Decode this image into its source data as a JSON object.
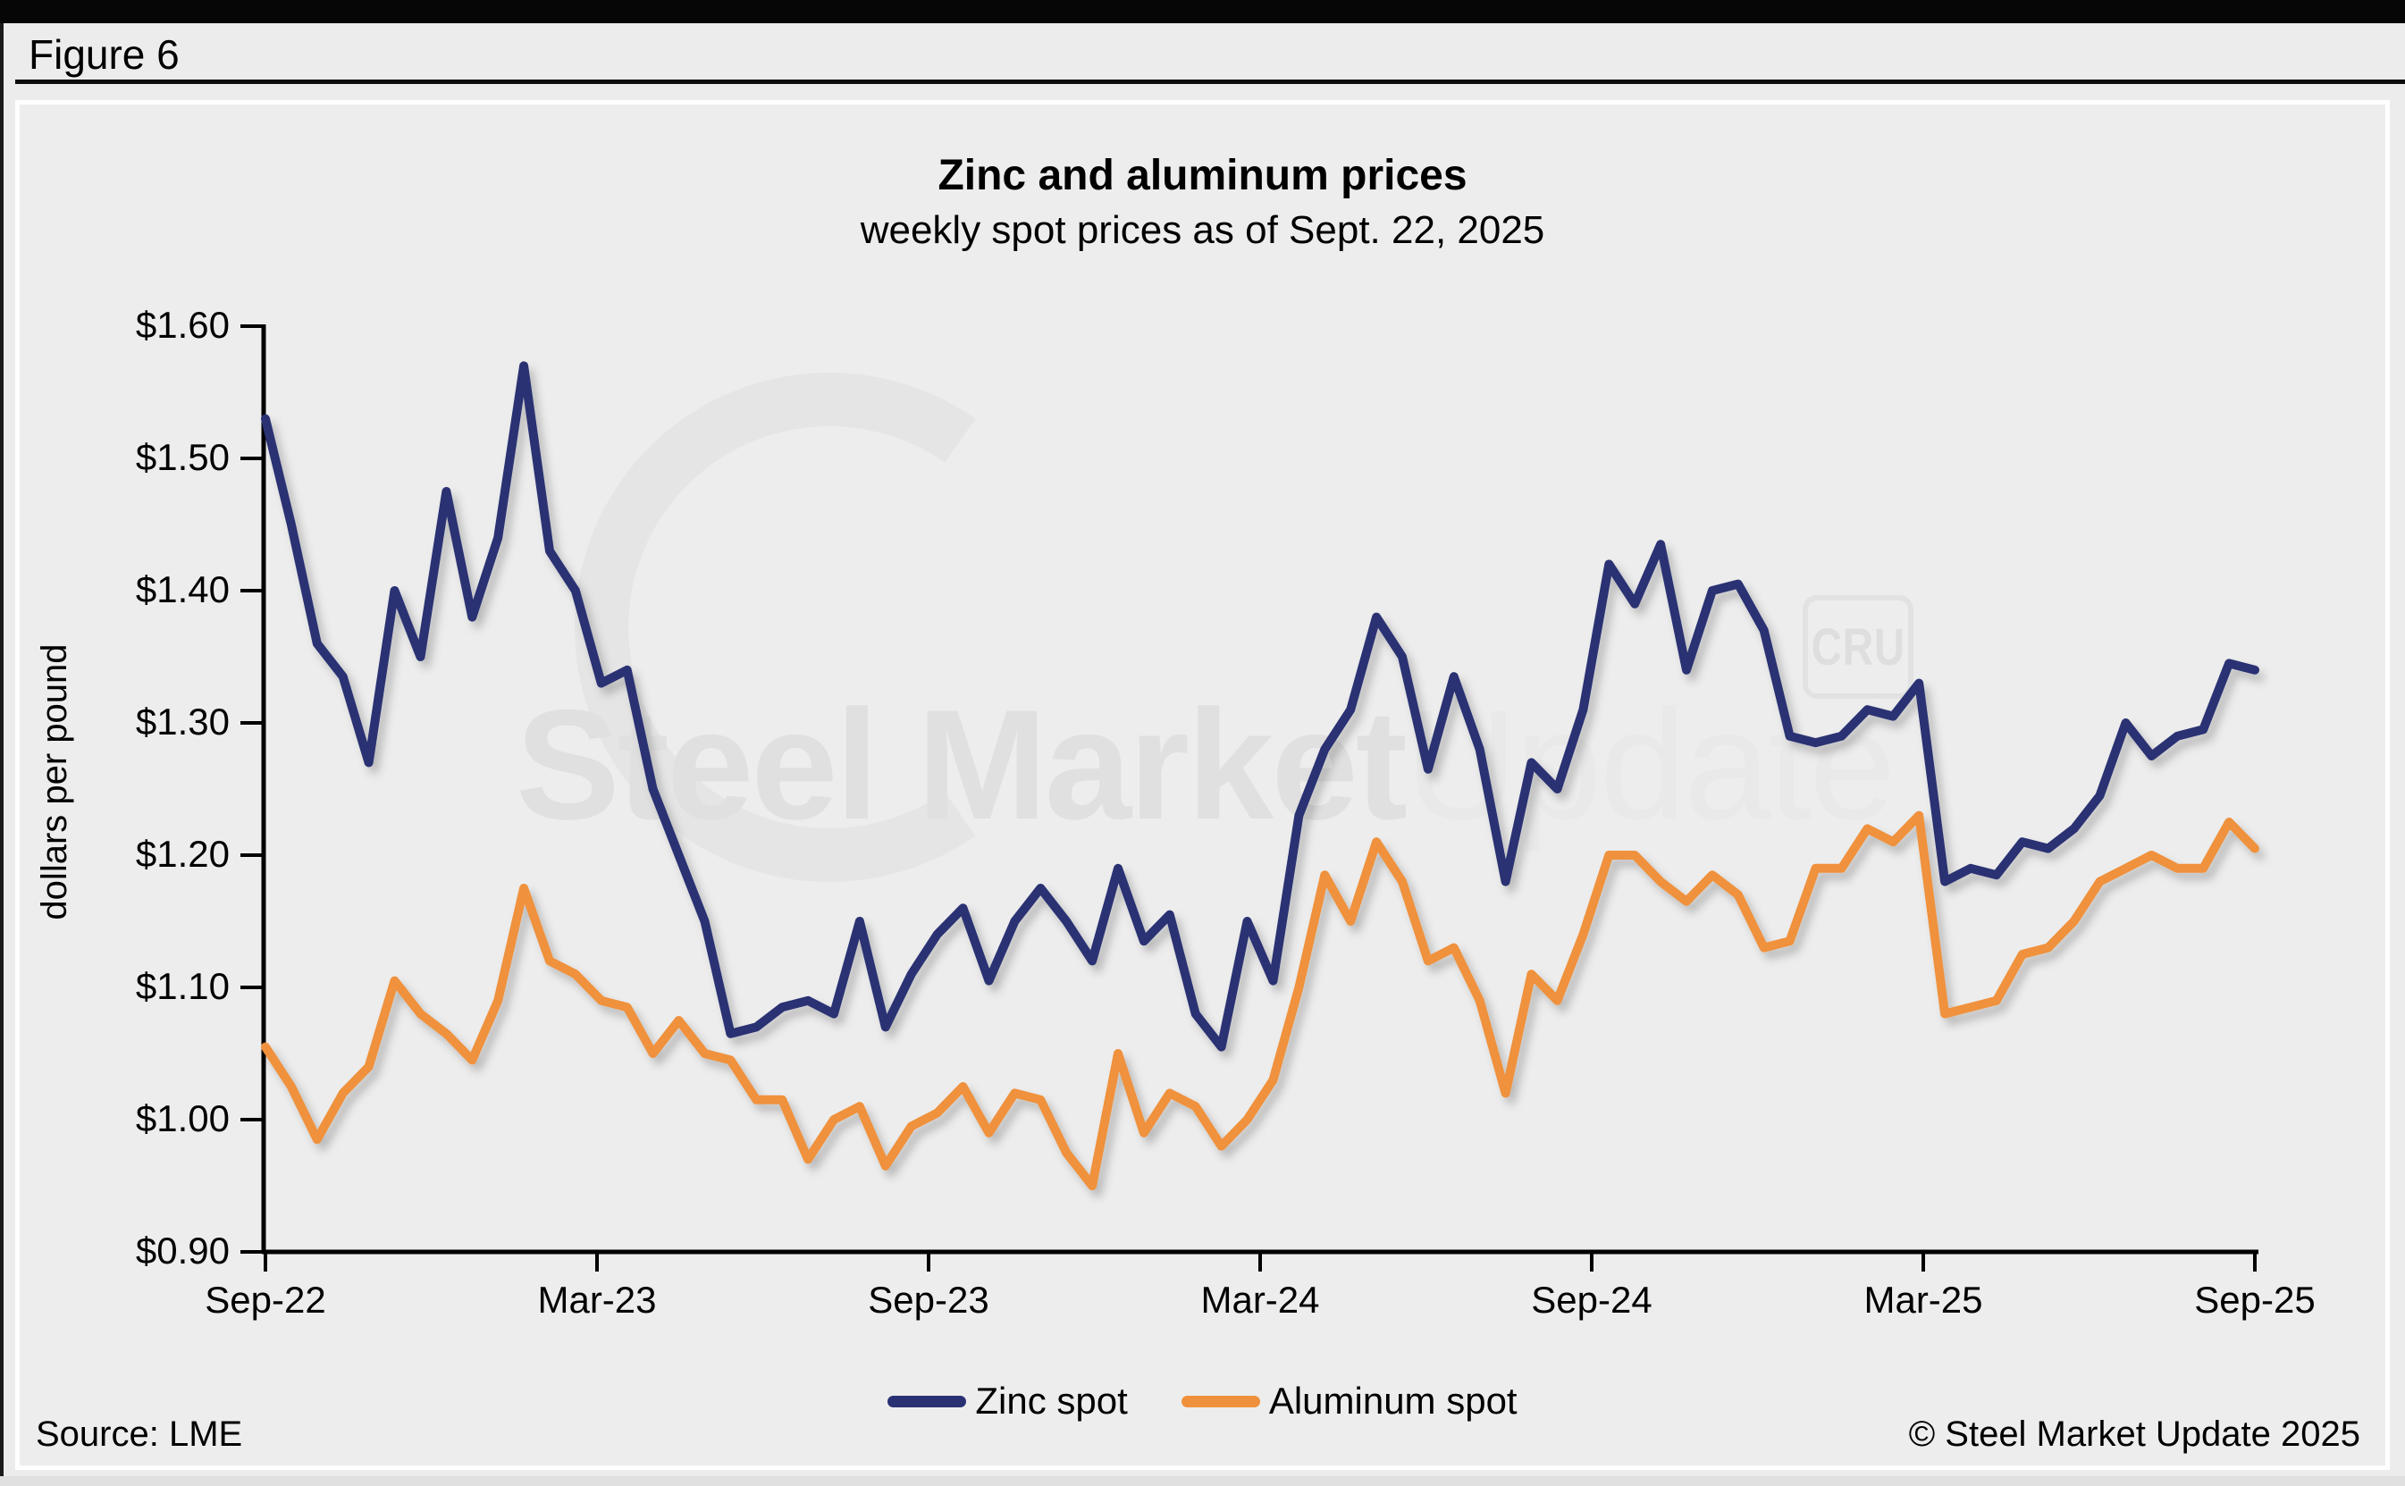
{
  "header": {
    "figure_label": "Figure 6"
  },
  "watermark": {
    "text_bold": "Steel Market",
    "text_light": "Update",
    "cru": "CRU"
  },
  "footer": {
    "source": "Source: LME",
    "copyright": "© Steel Market Update 2025"
  },
  "colors": {
    "zinc": "#293173",
    "aluminum": "#ef913c",
    "axis": "#000000",
    "panel_bg": "#ededed",
    "page_bg": "#ececec"
  },
  "chart_data": {
    "type": "line",
    "title": "Zinc and aluminum prices",
    "subtitle": "weekly spot prices as of Sept. 22, 2025",
    "ylabel": "dollars per pound",
    "xlabel": "",
    "grid": false,
    "legend_position": "bottom",
    "y_min": 0.9,
    "y_max": 1.6,
    "y_ticks": [
      "$1.60",
      "$1.50",
      "$1.40",
      "$1.30",
      "$1.20",
      "$1.10",
      "$1.00",
      "$0.90"
    ],
    "x_ticks": [
      "Sep-22",
      "Mar-23",
      "Sep-23",
      "Mar-24",
      "Sep-24",
      "Mar-25",
      "Sep-25"
    ],
    "x_unit": "biweekly samples from Sep-2022 to Sep-22-2025",
    "series": [
      {
        "name": "Zinc spot",
        "color": "#293173",
        "values": [
          1.53,
          1.45,
          1.36,
          1.335,
          1.27,
          1.4,
          1.35,
          1.475,
          1.38,
          1.44,
          1.57,
          1.43,
          1.4,
          1.33,
          1.34,
          1.25,
          1.2,
          1.15,
          1.065,
          1.07,
          1.085,
          1.09,
          1.08,
          1.15,
          1.07,
          1.11,
          1.14,
          1.16,
          1.105,
          1.15,
          1.175,
          1.15,
          1.12,
          1.19,
          1.135,
          1.155,
          1.08,
          1.055,
          1.15,
          1.105,
          1.23,
          1.28,
          1.31,
          1.38,
          1.35,
          1.265,
          1.335,
          1.28,
          1.18,
          1.27,
          1.25,
          1.31,
          1.42,
          1.39,
          1.435,
          1.34,
          1.4,
          1.405,
          1.37,
          1.29,
          1.285,
          1.29,
          1.31,
          1.305,
          1.33,
          1.18,
          1.19,
          1.185,
          1.21,
          1.205,
          1.22,
          1.245,
          1.3,
          1.275,
          1.29,
          1.295,
          1.345,
          1.34
        ]
      },
      {
        "name": "Aluminum spot",
        "color": "#ef913c",
        "values": [
          1.055,
          1.025,
          0.985,
          1.02,
          1.04,
          1.105,
          1.08,
          1.065,
          1.045,
          1.09,
          1.175,
          1.12,
          1.11,
          1.09,
          1.085,
          1.05,
          1.075,
          1.05,
          1.045,
          1.015,
          1.015,
          0.97,
          1.0,
          1.01,
          0.965,
          0.995,
          1.005,
          1.025,
          0.99,
          1.02,
          1.015,
          0.975,
          0.95,
          1.05,
          0.99,
          1.02,
          1.01,
          0.98,
          1.0,
          1.03,
          1.1,
          1.185,
          1.15,
          1.21,
          1.18,
          1.12,
          1.13,
          1.09,
          1.02,
          1.11,
          1.09,
          1.14,
          1.2,
          1.2,
          1.18,
          1.165,
          1.185,
          1.17,
          1.13,
          1.135,
          1.19,
          1.19,
          1.22,
          1.21,
          1.23,
          1.08,
          1.085,
          1.09,
          1.125,
          1.13,
          1.15,
          1.18,
          1.19,
          1.2,
          1.19,
          1.19,
          1.225,
          1.205
        ]
      }
    ]
  }
}
